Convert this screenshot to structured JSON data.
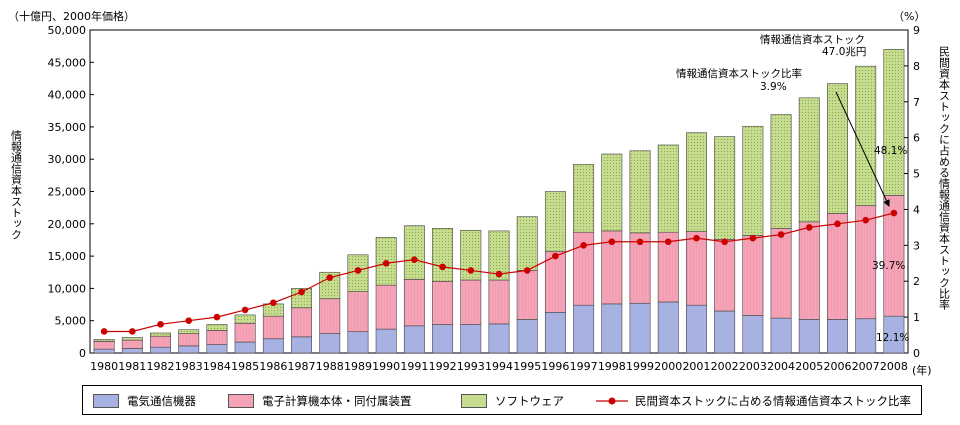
{
  "chart_data": {
    "type": "bar",
    "stacked": true,
    "categories": [
      "1980",
      "1981",
      "1982",
      "1983",
      "1984",
      "1985",
      "1986",
      "1987",
      "1988",
      "1989",
      "1990",
      "1991",
      "1992",
      "1993",
      "1994",
      "1995",
      "1996",
      "1997",
      "1998",
      "1999",
      "2000",
      "2001",
      "2002",
      "2003",
      "2004",
      "2005",
      "2006",
      "2007",
      "2008"
    ],
    "series": [
      {
        "name": "電気通信機器",
        "color": "#a7b2e3",
        "values": [
          600,
          700,
          900,
          1100,
          1300,
          1700,
          2200,
          2500,
          3000,
          3300,
          3700,
          4200,
          4400,
          4400,
          4500,
          5200,
          6300,
          7400,
          7600,
          7700,
          7900,
          7400,
          6500,
          5800,
          5400,
          5200,
          5200,
          5300,
          5700
        ]
      },
      {
        "name": "電子計算機本体・同付属装置",
        "color": "#f5a3b6",
        "values": [
          1200,
          1300,
          1700,
          1900,
          2200,
          2900,
          3500,
          4500,
          5400,
          6200,
          6800,
          7200,
          6700,
          6900,
          6800,
          7600,
          9400,
          11300,
          11300,
          10900,
          10800,
          11400,
          11100,
          12400,
          13900,
          15100,
          16400,
          17500,
          18700
        ]
      },
      {
        "name": "ソフトウェア",
        "color": "#c6dc8e",
        "values": [
          300,
          400,
          500,
          600,
          900,
          1300,
          1900,
          3000,
          4100,
          5700,
          7400,
          8300,
          8200,
          7700,
          7600,
          8300,
          9300,
          10500,
          11900,
          12700,
          13500,
          15300,
          15900,
          16900,
          17600,
          19200,
          20100,
          21600,
          22600
        ]
      }
    ],
    "line_series": {
      "name": "民間資本ストックに占める情報通信資本ストック比率",
      "color": "#cc0000",
      "values": [
        0.6,
        0.6,
        0.8,
        0.9,
        1.0,
        1.2,
        1.4,
        1.7,
        2.1,
        2.3,
        2.5,
        2.6,
        2.4,
        2.3,
        2.2,
        2.3,
        2.7,
        3.0,
        3.1,
        3.1,
        3.1,
        3.2,
        3.1,
        3.2,
        3.3,
        3.5,
        3.6,
        3.7,
        3.9
      ]
    },
    "ylim_left": [
      0,
      50000
    ],
    "yticks_left": [
      "0",
      "5,000",
      "10,000",
      "15,000",
      "20,000",
      "25,000",
      "30,000",
      "35,000",
      "40,000",
      "45,000",
      "50,000"
    ],
    "ylim_right": [
      0,
      9
    ],
    "yticks_right": [
      "0",
      "1",
      "2",
      "3",
      "4",
      "5",
      "6",
      "7",
      "8",
      "9"
    ],
    "left_unit": "（十億円、2000年価格）",
    "right_unit": "（%）",
    "x_unit": "(年)",
    "ylabel_left": "情報通信資本ストック",
    "ylabel_right": "民間資本ストックに占める情報通信資本ストック比率",
    "annotations": {
      "total_label": "情報通信資本ストック",
      "total_value": "47.0兆円",
      "ratio_label": "情報通信資本ストック比率",
      "ratio_value": "3.9%",
      "share_software": "48.1%",
      "share_computer": "39.7%",
      "share_telecom": "12.1%"
    },
    "legend_placement": "bottom",
    "grid": false
  }
}
